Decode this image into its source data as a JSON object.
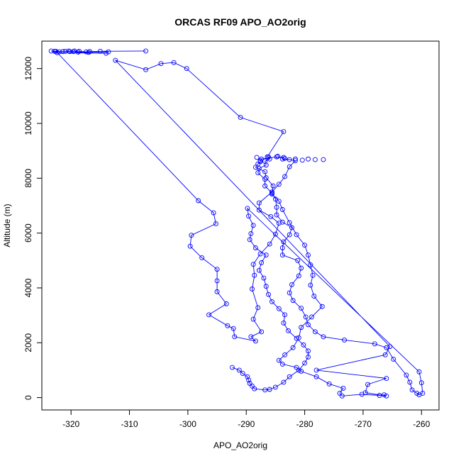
{
  "chart_data": {
    "type": "line",
    "title": "ORCAS RF09 APO_AO2orig",
    "xlabel": "APO_AO2orig",
    "ylabel": "Altitude (m)",
    "xlim": [
      -325,
      -257
    ],
    "ylim": [
      -450,
      13000
    ],
    "xticks": [
      -320,
      -310,
      -300,
      -290,
      -280,
      -270,
      -260
    ],
    "yticks": [
      0,
      2000,
      4000,
      6000,
      8000,
      10000,
      12000
    ],
    "grid": false,
    "line_color": "#0000ff",
    "marker": "open-circle",
    "series": [
      {
        "x": [
          -307.2,
          -315.0,
          -316.8,
          -317.4,
          -318.6,
          -319.4,
          -320.2,
          -321.0,
          -322.0,
          -322.8,
          -323.4,
          -322.4,
          -314.0,
          -313.6,
          -317.0,
          -318.8,
          -319.6,
          -320.4,
          -321.4,
          -322.6,
          -298.2,
          -295.6,
          -295.2,
          -299.4,
          -299.6,
          -297.6,
          -295.0,
          -295.0,
          -295.0,
          -293.4,
          -296.4,
          -293.2,
          -292.2,
          -292.0,
          -288.4,
          -289.2,
          -287.4,
          -288.8,
          -288.0,
          -289.0,
          -288.6,
          -288.8,
          -287.6,
          -286.0,
          -285.0,
          -284.4,
          -285.8,
          -287.8,
          -287.8,
          -285.6,
          -284.4,
          -283.4,
          -282.6,
          -281.6,
          -282.6,
          -283.8,
          -283.6,
          -284.8,
          -287.4,
          -287.6,
          -287.6,
          -288.0,
          -288.4,
          -286.8,
          -286.6,
          -285.4,
          -285.6,
          -284.4,
          -283.8,
          -282.6,
          -281.4,
          -280.0,
          -279.4,
          -279.0,
          -278.6,
          -279.0,
          -278.4,
          -277.0,
          -278.8,
          -280.6,
          -281.0,
          -282.0,
          -283.4,
          -284.4,
          -283.8,
          -281.4,
          -280.6,
          -278.0,
          -275.8,
          -273.4,
          -274.0,
          -273.6,
          -270.2,
          -267.2,
          -266.4,
          -266.0,
          -269.6,
          -269.2,
          -266.0,
          -278.0,
          -266.2,
          -265.4
        ],
        "y": [
          12640,
          12630,
          12620,
          12610,
          12630,
          12640,
          12620,
          12630,
          12610,
          12630,
          12640,
          12580,
          12560,
          12610,
          12590,
          12600,
          12620,
          12640,
          12620,
          12630,
          7180,
          6740,
          6340,
          5920,
          5520,
          5100,
          4680,
          4260,
          3860,
          3420,
          3020,
          2620,
          2520,
          2220,
          2060,
          2220,
          2400,
          2860,
          3280,
          3960,
          4460,
          4860,
          5240,
          5600,
          5960,
          6360,
          6600,
          6840,
          7100,
          7500,
          7780,
          8060,
          8420,
          8640,
          8680,
          8700,
          8760,
          8780,
          8700,
          8640,
          8600,
          8520,
          8400,
          8240,
          8020,
          7720,
          7420,
          7160,
          6860,
          6380,
          5940,
          5560,
          5200,
          4840,
          4460,
          4100,
          3700,
          3320,
          2940,
          2560,
          2180,
          1820,
          1560,
          1360,
          1220,
          1100,
          960,
          760,
          500,
          340,
          160,
          60,
          120,
          80,
          100,
          60,
          180,
          480,
          700,
          1000,
          1560,
          1860
        ]
      },
      {
        "x": [
          -312.4,
          -307.2,
          -304.6,
          -302.4,
          -300.2,
          -291.0,
          -283.6,
          -286.4,
          -286.0,
          -286.8,
          -286.6,
          -287.8,
          -288.0,
          -286.8,
          -286.8,
          -285.6,
          -285.0,
          -284.8,
          -284.8,
          -283.8,
          -282.2,
          -282.6,
          -283.6,
          -283.8,
          -283.8,
          -281.2,
          -280.6,
          -281.0,
          -282.2,
          -282.6,
          -282.0,
          -280.6,
          -279.8,
          -279.4,
          -278.2,
          -276.8,
          -273.2,
          -268.0,
          -266.0,
          -264.8,
          -262.6,
          -262.0,
          -261.6,
          -260.8,
          -260.4,
          -259.8,
          -260.0,
          -260.4
        ],
        "y": [
          12300,
          11960,
          12180,
          12220,
          12000,
          10220,
          9700,
          8780,
          8700,
          8620,
          8480,
          8360,
          8200,
          7960,
          7720,
          7460,
          7240,
          6940,
          6660,
          6400,
          6200,
          5940,
          5680,
          5460,
          5200,
          5000,
          4720,
          4440,
          4120,
          3820,
          3540,
          3260,
          2940,
          2660,
          2400,
          2220,
          2100,
          1960,
          1820,
          1400,
          820,
          560,
          280,
          160,
          100,
          160,
          540,
          940
        ]
      },
      {
        "x": [
          -289.8,
          -289.6,
          -288.8,
          -289.2,
          -289.4,
          -288.4,
          -286.6,
          -287.4,
          -287.8,
          -287.0,
          -286.6,
          -286.2,
          -285.6,
          -284.4,
          -283.4,
          -283.6,
          -282.8,
          -281.4,
          -280.2,
          -279.4,
          -279.4,
          -280.0,
          -281.0,
          -282.6,
          -283.6,
          -285.0,
          -286.0,
          -286.8,
          -288.6,
          -289.0,
          -289.4,
          -289.6,
          -289.8,
          -290.6,
          -291.2,
          -292.4
        ],
        "y": [
          6900,
          6620,
          6280,
          5980,
          5760,
          5460,
          5200,
          4920,
          4640,
          4360,
          4060,
          3760,
          3500,
          3240,
          3020,
          2720,
          2440,
          2160,
          1920,
          1700,
          1480,
          1260,
          1000,
          760,
          560,
          380,
          300,
          280,
          320,
          420,
          520,
          640,
          760,
          880,
          1000,
          1100
        ]
      }
    ],
    "outliers": {
      "x": [
        -288.2,
        -286.2,
        -284.6,
        -283.4,
        -281.6,
        -280.4,
        -279.4,
        -278.2,
        -276.8
      ],
      "y": [
        8760,
        8780,
        8800,
        8720,
        8700,
        8660,
        8700,
        8680,
        8680
      ]
    }
  }
}
